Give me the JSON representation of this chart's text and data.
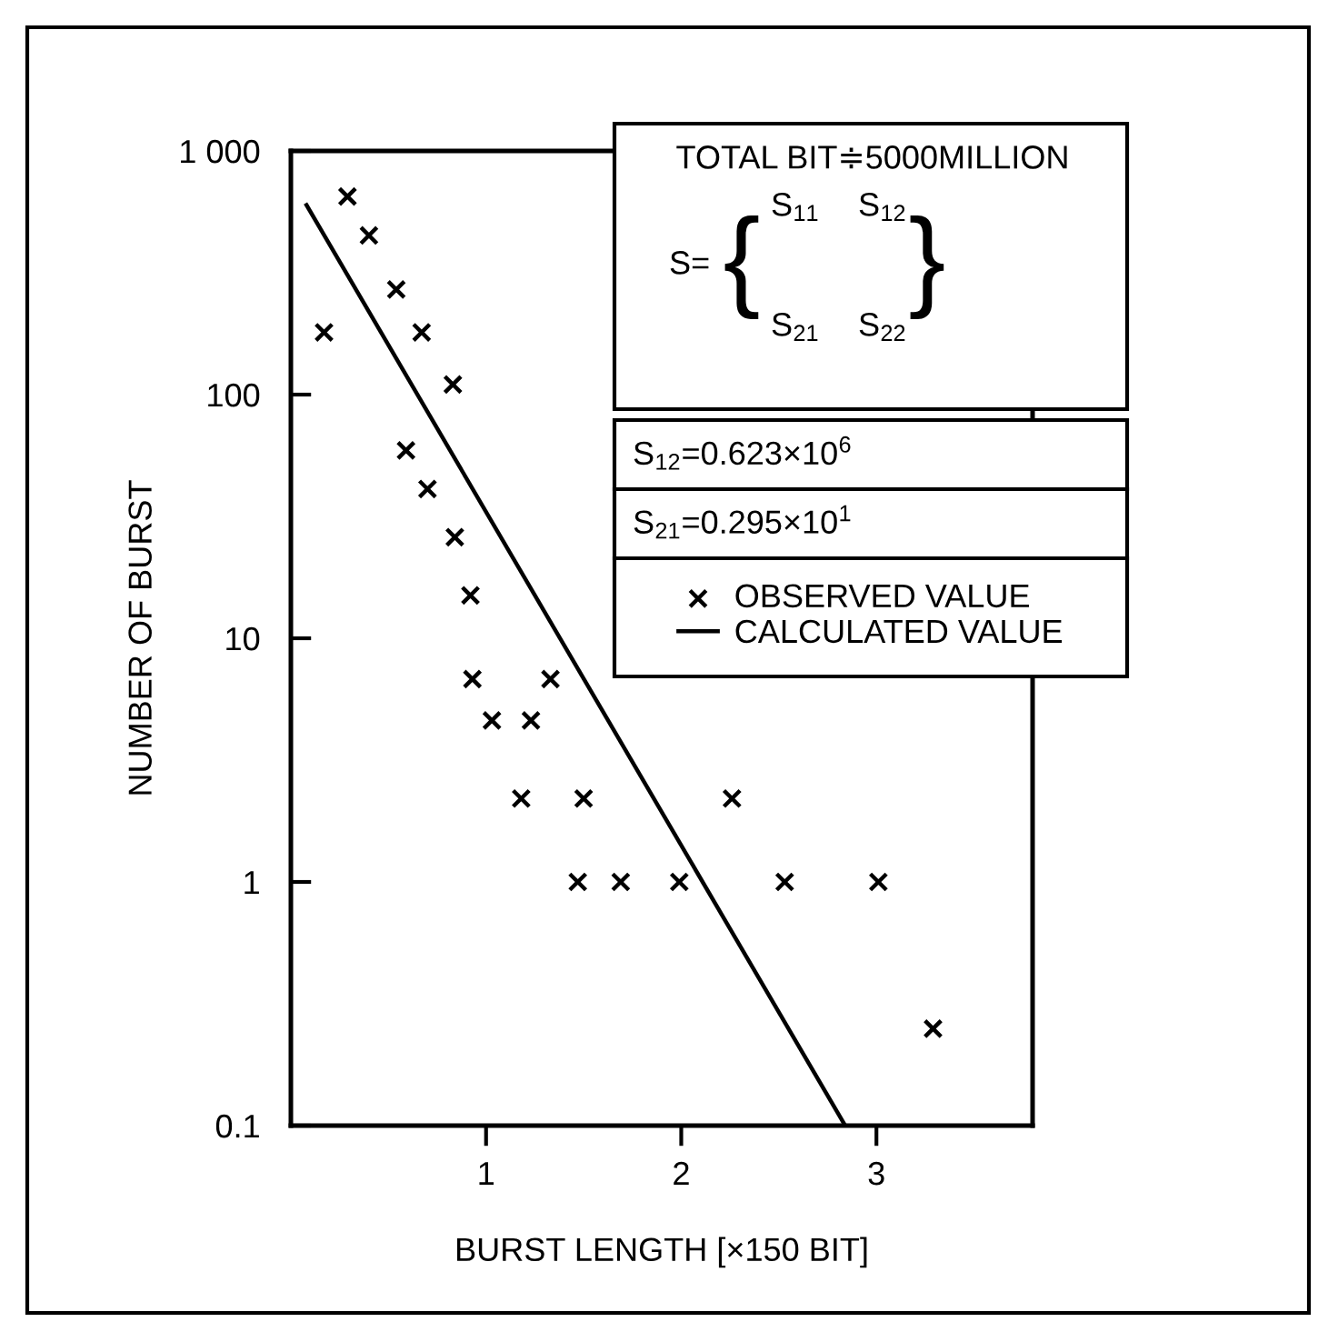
{
  "chart_data": {
    "type": "scatter",
    "xlabel": "BURST LENGTH [×150 BIT]",
    "ylabel": "NUMBER OF BURST",
    "log": "y",
    "xlim": [
      0,
      3.8
    ],
    "ylim": [
      0.1,
      1000
    ],
    "xticks": [
      1,
      2,
      3
    ],
    "yticks": [
      0.1,
      1,
      10,
      100,
      {
        "value": 1000,
        "label": "1 000"
      }
    ],
    "grid": false,
    "legend": "top right",
    "series": [
      {
        "name": "OBSERVED VALUE",
        "marker": "cross",
        "color": "#000000",
        "x": [
          0.17,
          0.29,
          0.4,
          0.54,
          0.67,
          0.83,
          0.59,
          0.7,
          0.84,
          0.92,
          0.93,
          1.33,
          1.03,
          1.23,
          1.18,
          1.5,
          1.47,
          1.69,
          1.99,
          2.26,
          2.53,
          3.01,
          3.29
        ],
        "values": [
          180,
          650,
          450,
          270,
          180,
          110,
          59,
          41,
          26,
          15,
          6.8,
          6.8,
          4.6,
          4.6,
          2.2,
          2.2,
          1,
          1,
          1,
          2.2,
          1,
          1,
          0.25
        ]
      },
      {
        "name": "CALCULATED VALUE",
        "type": "line",
        "marker": "none",
        "line_style": "solid",
        "color": "#000000",
        "x": [
          0.08,
          2.84
        ],
        "values": [
          600,
          0.1
        ]
      }
    ],
    "annotations": [
      "TOTAL BIT≑5000MILLION",
      "S=",
      "S$_{11}$",
      "S$_{12}$",
      "S$_{21}$",
      "S$_{22}$",
      "S$_{12}$=0.623×10$^{6}$",
      "S$_{21}$=0.295×10$^{1}$",
      "{",
      "}"
    ]
  }
}
